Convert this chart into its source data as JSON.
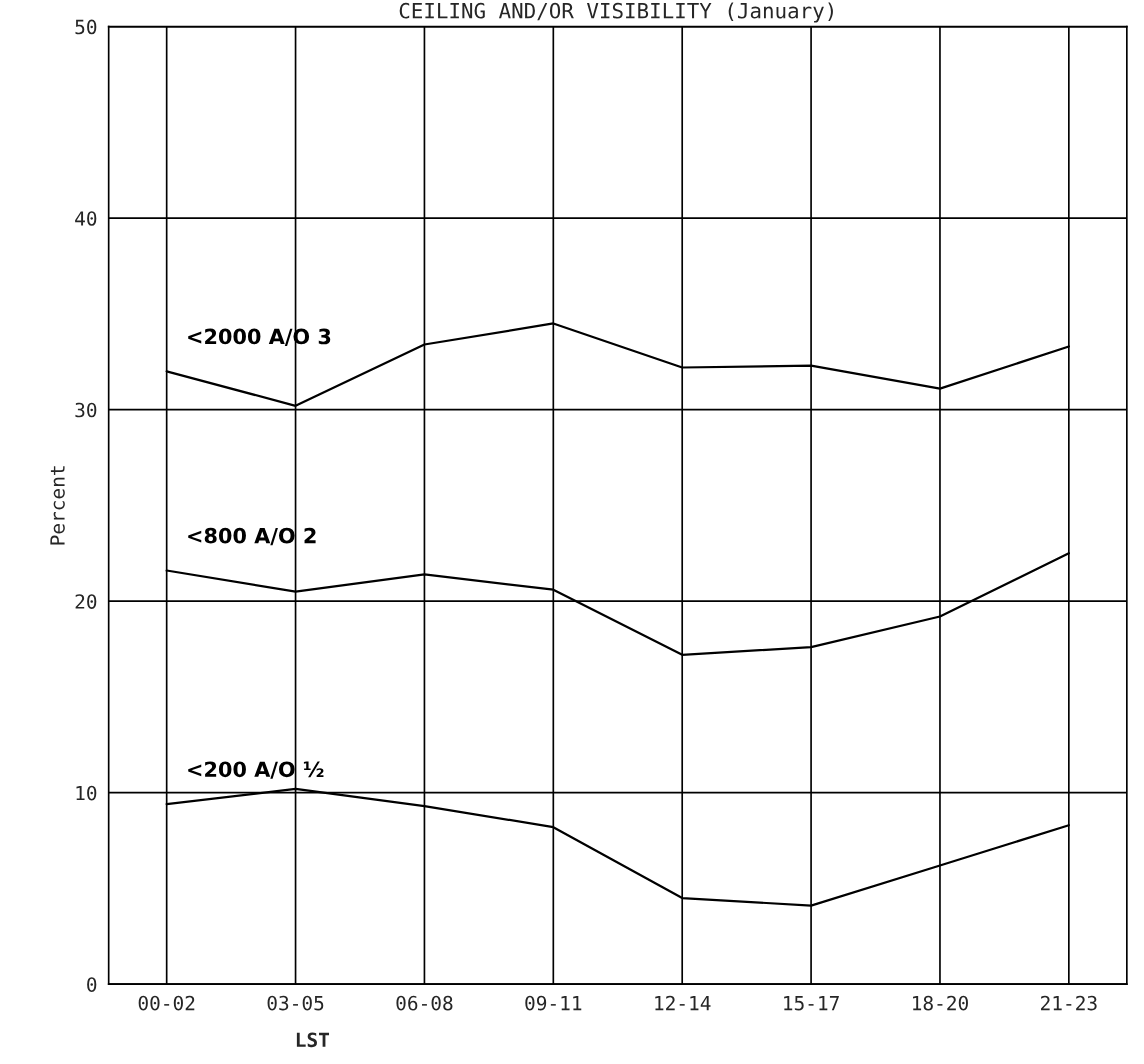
{
  "chart_data": {
    "type": "line",
    "title": "CEILING AND/OR VISIBILITY (January)",
    "xlabel": "LST",
    "ylabel": "Percent",
    "categories": [
      "00-02",
      "03-05",
      "06-08",
      "09-11",
      "12-14",
      "15-17",
      "18-20",
      "21-23"
    ],
    "series": [
      {
        "name": "<2000 A/O 3",
        "color": "#000000",
        "values": [
          32.0,
          30.2,
          33.4,
          34.5,
          32.2,
          32.3,
          31.1,
          33.3
        ]
      },
      {
        "name": "<800 A/O 2",
        "color": "#000000",
        "values": [
          21.6,
          20.5,
          21.4,
          20.6,
          17.2,
          17.6,
          19.2,
          22.5
        ]
      },
      {
        "name": "<200 A/O ½",
        "color": "#000000",
        "values": [
          9.4,
          10.2,
          9.3,
          8.2,
          4.5,
          4.1,
          6.2,
          8.3
        ]
      }
    ],
    "ylim": [
      0,
      50
    ],
    "yticks": [
      0,
      10,
      20,
      30,
      40,
      50
    ],
    "grid": true,
    "legend": false,
    "marker": "none",
    "line_style": "solid"
  }
}
